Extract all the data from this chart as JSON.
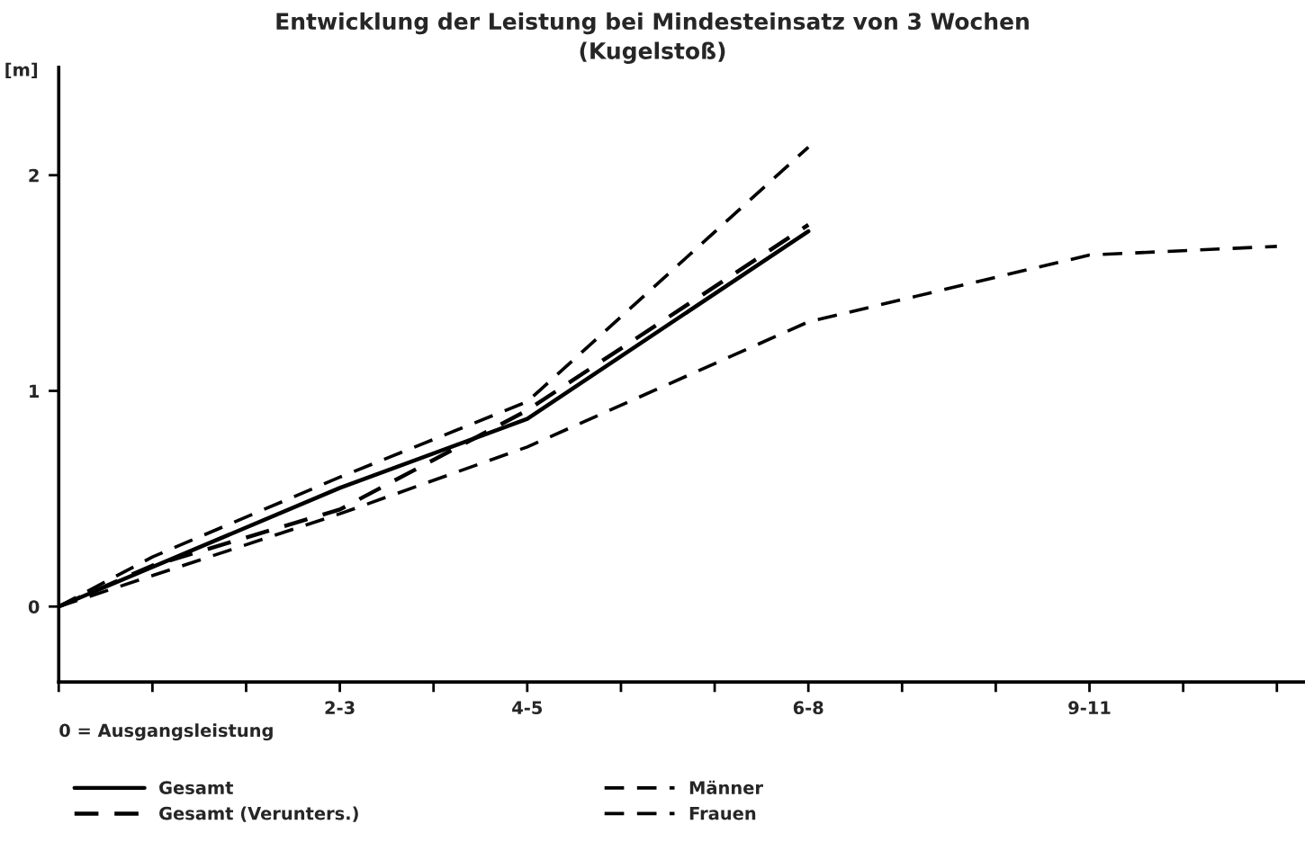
{
  "chart_data": {
    "type": "line",
    "title": "Entwicklung der Leistung bei Mindesteinsatz von 3 Wochen",
    "subtitle": "(Kugelstoß)",
    "ylabel": "[m]",
    "annotations": [
      "0 = Ausgangsleistung"
    ],
    "categories": [
      null,
      null,
      null,
      "2-3",
      null,
      "4-5",
      null,
      null,
      "6-8",
      null,
      null,
      "9-11",
      null,
      null
    ],
    "ylim": [
      -0.35,
      2.5
    ],
    "yticks": [
      0,
      1,
      2
    ],
    "grid": false,
    "legend": "bottom",
    "series": [
      {
        "name": "Gesamt",
        "color": "#000000",
        "line_style": "solid",
        "values": [
          0,
          null,
          null,
          0.55,
          null,
          0.87,
          null,
          null,
          1.74,
          null,
          null,
          null,
          null,
          null
        ]
      },
      {
        "name": "Gesamt (Verunters.)",
        "color": "#000000",
        "line_style": "dashed",
        "values": [
          0,
          0.19,
          null,
          0.45,
          null,
          0.91,
          null,
          null,
          1.77,
          null,
          null,
          null,
          null,
          null
        ]
      },
      {
        "name": "Männer",
        "color": "#000000",
        "line_style": "dashed",
        "values": [
          0,
          0.23,
          null,
          0.6,
          null,
          0.95,
          null,
          null,
          2.13,
          null,
          null,
          null,
          null,
          null
        ]
      },
      {
        "name": "Frauen",
        "color": "#000000",
        "line_style": "dashed",
        "values": [
          0,
          null,
          null,
          0.43,
          null,
          0.74,
          null,
          null,
          1.32,
          null,
          null,
          1.63,
          null,
          1.67
        ]
      }
    ]
  }
}
